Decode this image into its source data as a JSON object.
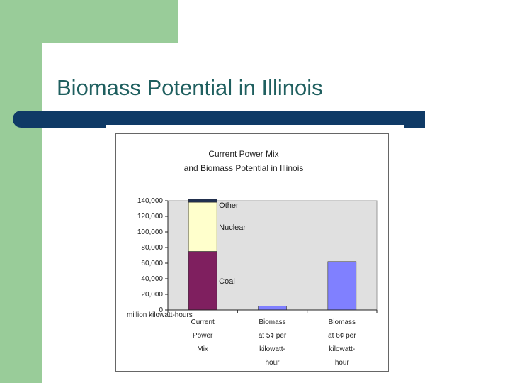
{
  "slide": {
    "title": "Biomass Potential in Illinois"
  },
  "colors": {
    "sidebar_green": "#99cc99",
    "rule_navy": "#0f3a66",
    "title_teal": "#1f5f5f"
  },
  "chart_data": {
    "type": "bar",
    "title_lines": [
      "Current Power Mix",
      "and Biomass Potential in Illinois"
    ],
    "ylabel": "million kilowatt-hours",
    "ylim": [
      0,
      140000
    ],
    "yticks": [
      0,
      20000,
      40000,
      60000,
      80000,
      100000,
      120000,
      140000
    ],
    "ytick_labels": [
      "0",
      "20,000",
      "40,000",
      "60,000",
      "80,000",
      "100,000",
      "120,000",
      "140,000"
    ],
    "categories": [
      {
        "lines": [
          "Current",
          "Power",
          "Mix"
        ]
      },
      {
        "lines": [
          "Biomass",
          "at 5¢ per",
          "kilowatt-",
          "hour"
        ]
      },
      {
        "lines": [
          "Biomass",
          "at 6¢ per",
          "kilowatt-",
          "hour"
        ]
      }
    ],
    "stacked_bar": {
      "category_index": 0,
      "segments": [
        {
          "name": "Coal",
          "value": 75000,
          "color": "#7f1f5f"
        },
        {
          "name": "Nuclear",
          "value": 63000,
          "color": "#ffffcc"
        },
        {
          "name": "Other",
          "value": 4000,
          "color": "#203050"
        }
      ]
    },
    "simple_bars": [
      {
        "category_index": 1,
        "value": 5000,
        "color": "#8080ff"
      },
      {
        "category_index": 2,
        "value": 62000,
        "color": "#8080ff"
      }
    ],
    "plot_background": "#e0e0e0",
    "grid": false
  }
}
